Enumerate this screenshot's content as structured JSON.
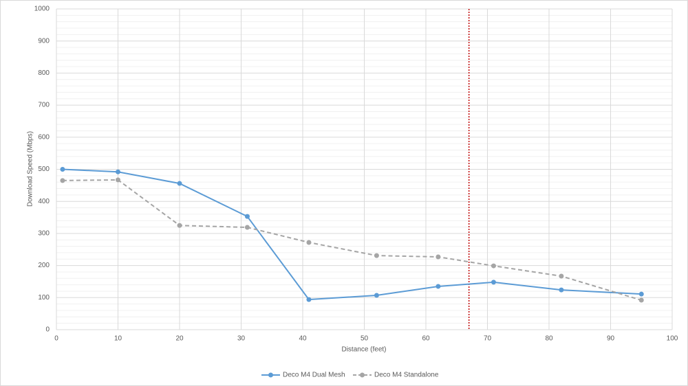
{
  "chart_data": {
    "type": "line",
    "x_label": "Distance (feet)",
    "y_label": "Download Speed (Mbps)",
    "xlim": [
      0,
      100
    ],
    "xticks": [
      0,
      10,
      20,
      30,
      40,
      50,
      60,
      70,
      80,
      90,
      100
    ],
    "ylim": [
      0,
      1000
    ],
    "yticks": [
      0,
      100,
      200,
      300,
      400,
      500,
      600,
      700,
      800,
      900,
      1000
    ],
    "yminorticks": [
      20,
      40,
      60,
      80,
      120,
      140,
      160,
      180,
      220,
      240,
      260,
      280,
      320,
      340,
      360,
      380,
      420,
      440,
      460,
      480,
      520,
      540,
      560,
      580,
      620,
      640,
      660,
      680,
      720,
      740,
      760,
      780,
      820,
      840,
      860,
      880,
      920,
      940,
      960,
      980
    ],
    "grid": true,
    "legend": "bottom",
    "reference_line": {
      "x": 67,
      "color": "#c00000"
    },
    "series": [
      {
        "name": "Deco M4 Dual Mesh",
        "color": "#5b9bd5",
        "dashed": false,
        "x": [
          1,
          10,
          20,
          31,
          41,
          52,
          62,
          71,
          82,
          95
        ],
        "values": [
          500,
          492,
          456,
          353,
          94,
          107,
          135,
          148,
          124,
          111
        ]
      },
      {
        "name": "Deco M4 Standalone",
        "color": "#a5a5a5",
        "dashed": true,
        "x": [
          1,
          10,
          20,
          31,
          41,
          52,
          62,
          71,
          82,
          95
        ],
        "values": [
          465,
          467,
          325,
          319,
          272,
          231,
          227,
          199,
          167,
          92
        ]
      }
    ]
  }
}
